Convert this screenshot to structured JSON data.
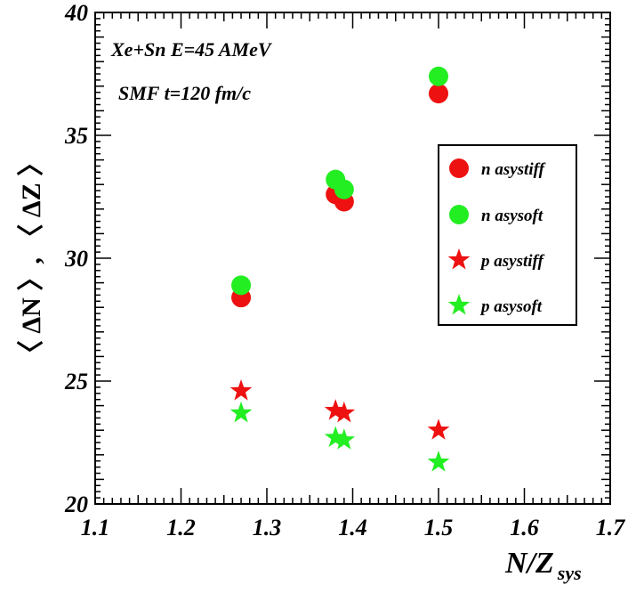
{
  "chart_data": {
    "type": "scatter",
    "title": "",
    "annotations": [
      "Xe+Sn E=45 AMeV",
      "SMF t=120 fm/c"
    ],
    "xlabel": "N/Z",
    "xlabel_sub": "sys",
    "ylabel": "〈 ΔN 〉, 〈 ΔZ 〉",
    "xlim": [
      1.1,
      1.7
    ],
    "ylim": [
      20,
      40
    ],
    "xticks": [
      "1.1",
      "1.2",
      "1.3",
      "1.4",
      "1.5",
      "1.6",
      "1.7"
    ],
    "yticks": [
      "20",
      "25",
      "30",
      "35",
      "40"
    ],
    "legend_position": "right",
    "series": [
      {
        "name": "n asystiff",
        "marker": "circle",
        "color": "#ee1111",
        "x": [
          1.27,
          1.38,
          1.39,
          1.5
        ],
        "y": [
          28.4,
          32.6,
          32.3,
          36.7
        ]
      },
      {
        "name": "n asysoft",
        "marker": "circle",
        "color": "#22ee22",
        "x": [
          1.27,
          1.38,
          1.39,
          1.5
        ],
        "y": [
          28.9,
          33.2,
          32.8,
          37.4
        ]
      },
      {
        "name": "p asystiff",
        "marker": "star",
        "color": "#ee1111",
        "x": [
          1.27,
          1.38,
          1.39,
          1.5
        ],
        "y": [
          24.6,
          23.8,
          23.7,
          23.0
        ]
      },
      {
        "name": "p asysoft",
        "marker": "star",
        "color": "#22ee22",
        "x": [
          1.27,
          1.38,
          1.39,
          1.5
        ],
        "y": [
          23.7,
          22.7,
          22.6,
          21.7
        ]
      }
    ]
  }
}
